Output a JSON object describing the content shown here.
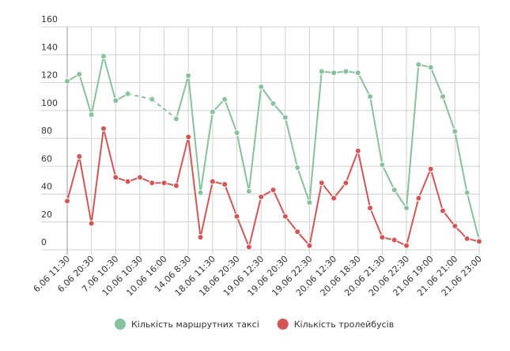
{
  "chart_data": {
    "type": "line",
    "categories": [
      "6.06 11:30",
      null,
      "6.06 20:30",
      null,
      "7.06 10:30",
      null,
      "10.06 10:30",
      null,
      "10.06 16:00",
      null,
      "14.06 8:30",
      null,
      "18.06 11:30",
      null,
      "18.06 20:30",
      null,
      "19.06 12:30",
      null,
      "19.06 20:30",
      null,
      "19.06 22:30",
      null,
      "20.06 12:30",
      null,
      "20.06 18:30",
      null,
      "20.06 21:30",
      null,
      "20.06 22:30",
      null,
      "21.06 19:00",
      null,
      "21.06 21:00",
      null,
      "21.06 23:00"
    ],
    "series": [
      {
        "name": "Кількість маршрутних таксі",
        "color": "#86c29c",
        "values": [
          121,
          126,
          97,
          139,
          107,
          112,
          null,
          108,
          null,
          94,
          125,
          41,
          99,
          108,
          84,
          42,
          117,
          105,
          95,
          59,
          34,
          128,
          127,
          128,
          127,
          110,
          61,
          43,
          30,
          133,
          131,
          110,
          85,
          41,
          7
        ]
      },
      {
        "name": "Кількість тролейбусів",
        "color": "#d65454",
        "values": [
          35,
          67,
          19,
          87,
          52,
          49,
          52,
          48,
          48,
          46,
          81,
          9,
          49,
          47,
          24,
          2,
          38,
          43,
          24,
          13,
          3,
          48,
          37,
          48,
          71,
          30,
          9,
          7,
          3,
          37,
          58,
          28,
          17,
          8,
          6
        ]
      }
    ],
    "ylim": [
      0,
      160
    ],
    "yticks": [
      0,
      20,
      40,
      60,
      80,
      100,
      120,
      140,
      160
    ],
    "grid": true,
    "legend": "bottom"
  }
}
